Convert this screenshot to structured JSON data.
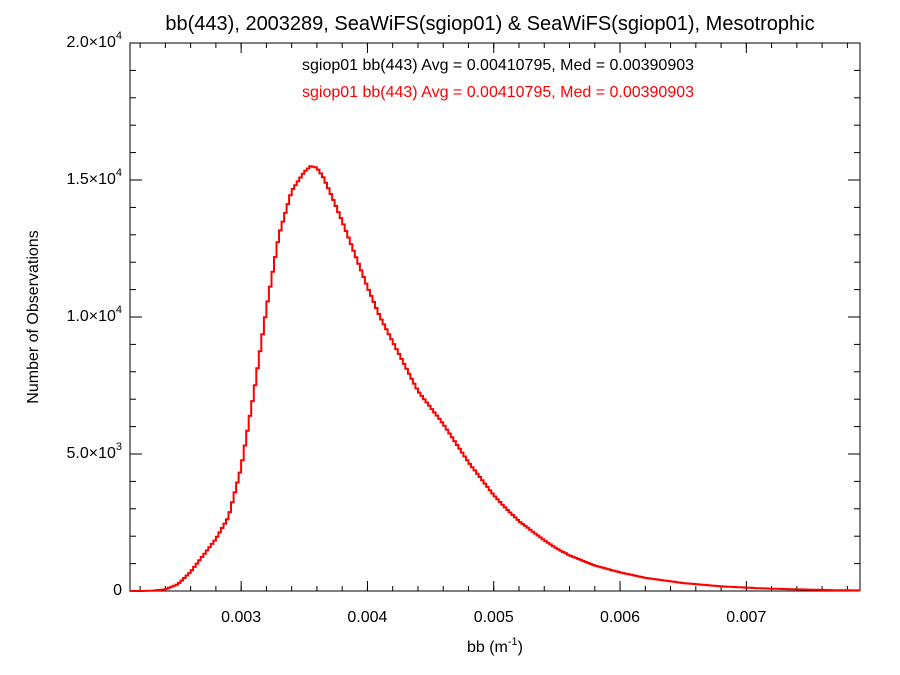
{
  "colors": {
    "background": "#ffffff",
    "axis": "#000000",
    "series_primary": "#000000",
    "series_overlay": "#ff0000"
  },
  "chart_data": {
    "type": "line",
    "title": "bb(443), 2003289, SeaWiFS(sgiop01) & SeaWiFS(sgiop01), Mesotrophic",
    "xlabel": {
      "base": "bb (m",
      "exponent": "-1",
      "close": ")"
    },
    "ylabel": "Number of Observations",
    "xlim": [
      0.00212,
      0.0079
    ],
    "ylim": [
      0,
      20000
    ],
    "x_ticks": [
      {
        "value": 0.003,
        "label": "0.003"
      },
      {
        "value": 0.004,
        "label": "0.004"
      },
      {
        "value": 0.005,
        "label": "0.005"
      },
      {
        "value": 0.006,
        "label": "0.006"
      },
      {
        "value": 0.007,
        "label": "0.007"
      }
    ],
    "y_ticks": [
      {
        "value": 0,
        "mantissa": "0",
        "exponent": ""
      },
      {
        "value": 5000,
        "mantissa": "5.0×10",
        "exponent": "3"
      },
      {
        "value": 10000,
        "mantissa": "1.0×10",
        "exponent": "4"
      },
      {
        "value": 15000,
        "mantissa": "1.5×10",
        "exponent": "4"
      },
      {
        "value": 20000,
        "mantissa": "2.0×10",
        "exponent": "4"
      }
    ],
    "annotations": [
      {
        "text": "sgiop01 bb(443) Avg = 0.00410795, Med = 0.00390903",
        "color": "#000000"
      },
      {
        "text": "sgiop01 bb(443) Avg = 0.00410795, Med = 0.00390903",
        "color": "#ff0000"
      }
    ],
    "series": [
      {
        "color": "#ff0000",
        "drawstyle": "steps",
        "x": [
          0.00212,
          0.0022,
          0.0023,
          0.0024,
          0.0025,
          0.0026,
          0.0027,
          0.0028,
          0.0029,
          0.003,
          0.0031,
          0.0032,
          0.0033,
          0.0034,
          0.0035,
          0.00355,
          0.0036,
          0.00365,
          0.0037,
          0.0038,
          0.0039,
          0.004,
          0.0041,
          0.0042,
          0.0043,
          0.0044,
          0.0045,
          0.0046,
          0.0047,
          0.0048,
          0.0049,
          0.005,
          0.0051,
          0.0052,
          0.0053,
          0.0054,
          0.0055,
          0.0056,
          0.0058,
          0.006,
          0.0062,
          0.0065,
          0.0068,
          0.0071,
          0.0074,
          0.0077,
          0.0079
        ],
        "y": [
          0,
          0,
          10,
          60,
          250,
          700,
          1300,
          1900,
          2700,
          4500,
          7200,
          10300,
          13000,
          14600,
          15300,
          15500,
          15450,
          15100,
          14600,
          13500,
          12300,
          11100,
          10000,
          9100,
          8200,
          7300,
          6700,
          6100,
          5400,
          4700,
          4100,
          3500,
          3000,
          2550,
          2200,
          1850,
          1550,
          1300,
          930,
          680,
          480,
          290,
          170,
          100,
          60,
          30,
          20
        ]
      }
    ]
  }
}
